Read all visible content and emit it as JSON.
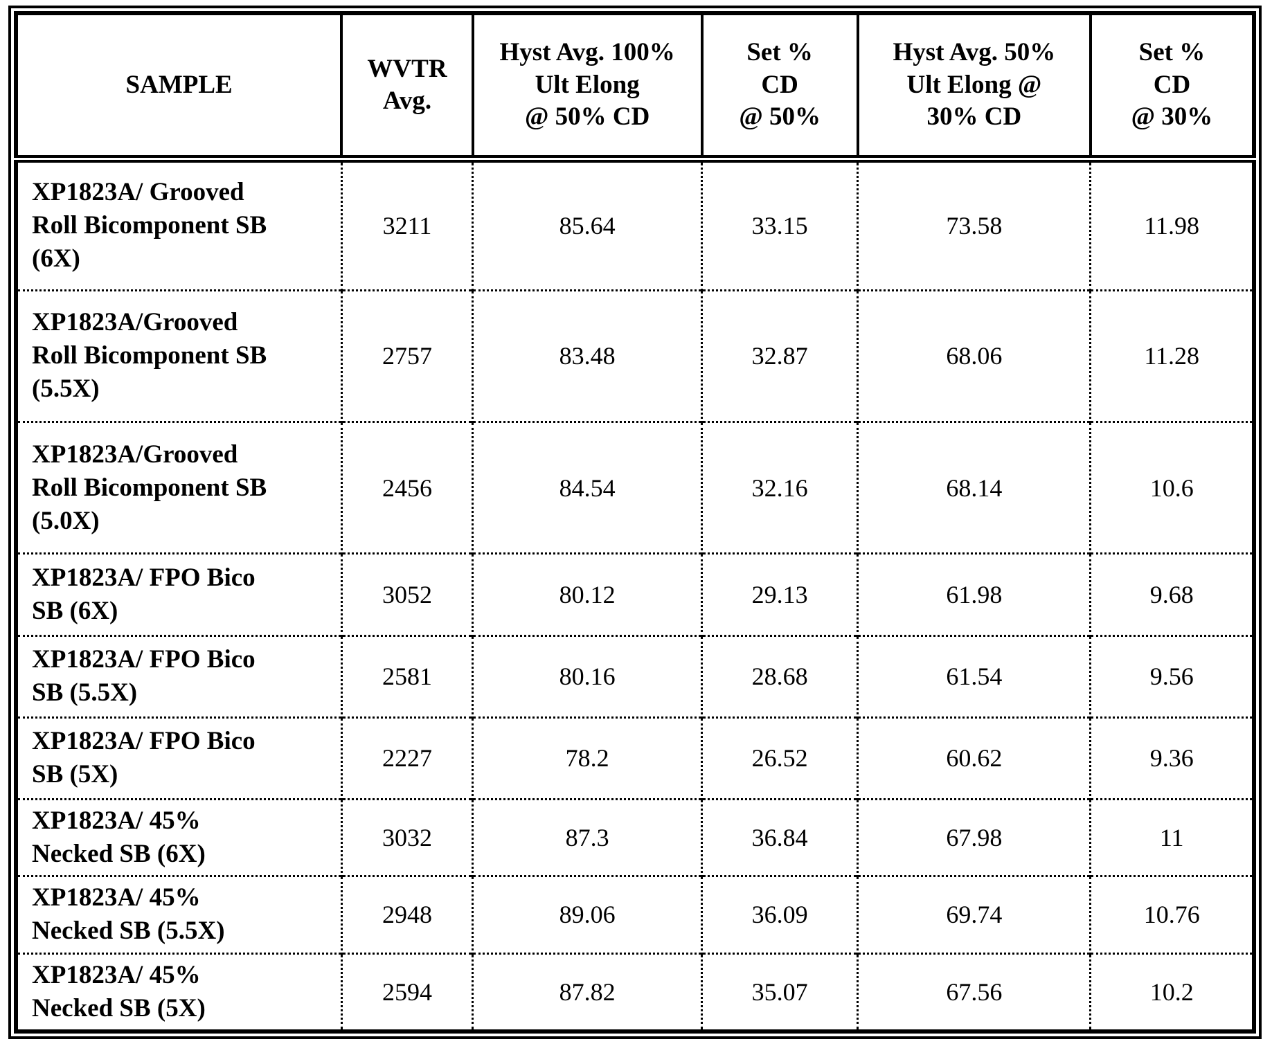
{
  "page": {
    "background_color": "#ffffff",
    "text_color": "#000000",
    "border_color": "#000000"
  },
  "table": {
    "headers": [
      "SAMPLE",
      "WVTR\nAvg.",
      "Hyst Avg. 100%\nUlt Elong\n@ 50% CD",
      "Set %\nCD\n@ 50%",
      "Hyst Avg. 50%\nUlt Elong @\n30% CD",
      "Set %\nCD\n@ 30%"
    ],
    "rows": [
      {
        "sample": "XP1823A/ Grooved\nRoll Bicomponent SB\n(6X)",
        "values": [
          "3211",
          "85.64",
          "33.15",
          "73.58",
          "11.98"
        ]
      },
      {
        "sample": "XP1823A/Grooved\nRoll Bicomponent SB\n(5.5X)",
        "values": [
          "2757",
          "83.48",
          "32.87",
          "68.06",
          "11.28"
        ]
      },
      {
        "sample": "XP1823A/Grooved\nRoll Bicomponent SB\n(5.0X)",
        "values": [
          "2456",
          "84.54",
          "32.16",
          "68.14",
          "10.6"
        ]
      },
      {
        "sample": "XP1823A/ FPO Bico\nSB (6X)",
        "values": [
          "3052",
          "80.12",
          "29.13",
          "61.98",
          "9.68"
        ]
      },
      {
        "sample": "XP1823A/ FPO Bico\nSB (5.5X)",
        "values": [
          "2581",
          "80.16",
          "28.68",
          "61.54",
          "9.56"
        ]
      },
      {
        "sample": "XP1823A/ FPO Bico\nSB (5X)",
        "values": [
          "2227",
          "78.2",
          "26.52",
          "60.62",
          "9.36"
        ]
      },
      {
        "sample": "XP1823A/ 45%\nNecked SB (6X)",
        "values": [
          "3032",
          "87.3",
          "36.84",
          "67.98",
          "11"
        ]
      },
      {
        "sample": "XP1823A/ 45%\nNecked SB (5.5X)",
        "values": [
          "2948",
          "89.06",
          "36.09",
          "69.74",
          "10.76"
        ]
      },
      {
        "sample": "XP1823A/ 45%\nNecked SB (5X)",
        "values": [
          "2594",
          "87.82",
          "35.07",
          "67.56",
          "10.2"
        ]
      }
    ]
  }
}
